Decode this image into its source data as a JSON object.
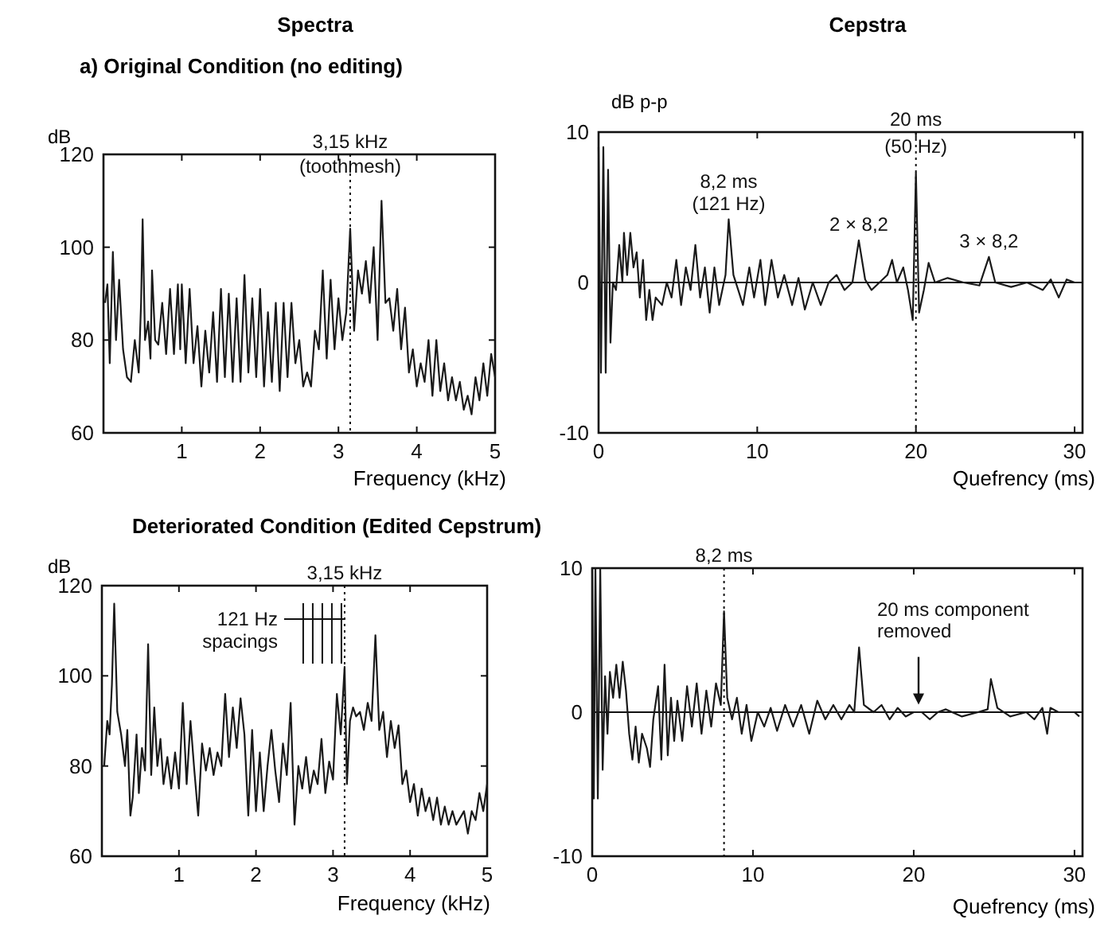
{
  "chart_data": [
    {
      "type": "line",
      "title": "Spectra",
      "subtitle": "a) Original Condition (no editing)",
      "xlabel": "Frequency (kHz)",
      "ylabel": "dB",
      "xlim": [
        0,
        5
      ],
      "ylim": [
        60,
        120
      ],
      "xticks": [
        1,
        2,
        3,
        4,
        5
      ],
      "yticks": [
        60,
        80,
        100,
        120
      ],
      "x": [
        0.02,
        0.05,
        0.08,
        0.12,
        0.16,
        0.2,
        0.25,
        0.3,
        0.35,
        0.4,
        0.45,
        0.48,
        0.5,
        0.53,
        0.57,
        0.6,
        0.62,
        0.66,
        0.7,
        0.75,
        0.8,
        0.85,
        0.9,
        0.95,
        0.98,
        1.0,
        1.05,
        1.1,
        1.15,
        1.2,
        1.25,
        1.3,
        1.35,
        1.4,
        1.45,
        1.5,
        1.55,
        1.6,
        1.65,
        1.7,
        1.75,
        1.8,
        1.85,
        1.9,
        1.95,
        2.0,
        2.05,
        2.1,
        2.15,
        2.2,
        2.25,
        2.3,
        2.35,
        2.4,
        2.45,
        2.5,
        2.55,
        2.6,
        2.65,
        2.7,
        2.75,
        2.8,
        2.85,
        2.9,
        2.95,
        3.0,
        3.05,
        3.1,
        3.15,
        3.2,
        3.25,
        3.3,
        3.35,
        3.4,
        3.45,
        3.5,
        3.55,
        3.6,
        3.65,
        3.7,
        3.75,
        3.8,
        3.85,
        3.9,
        3.95,
        4.0,
        4.05,
        4.1,
        4.15,
        4.2,
        4.25,
        4.3,
        4.35,
        4.4,
        4.45,
        4.5,
        4.55,
        4.6,
        4.65,
        4.7,
        4.75,
        4.8,
        4.85,
        4.9,
        4.95,
        5.0
      ],
      "series": [
        {
          "color": "#1a1a1a",
          "values": [
            88,
            92,
            75,
            99,
            80,
            93,
            78,
            72,
            71,
            80,
            73,
            88,
            106,
            80,
            84,
            76,
            95,
            80,
            79,
            88,
            77,
            91,
            77,
            92,
            78,
            92,
            75,
            91,
            75,
            83,
            70,
            82,
            73,
            86,
            71,
            91,
            72,
            90,
            71,
            89,
            71,
            94,
            73,
            89,
            72,
            91,
            70,
            86,
            71,
            88,
            69,
            88,
            72,
            88,
            75,
            80,
            70,
            73,
            70,
            82,
            78,
            95,
            76,
            93,
            78,
            89,
            80,
            86,
            104,
            82,
            95,
            90,
            97,
            88,
            100,
            80,
            110,
            88,
            89,
            82,
            91,
            78,
            87,
            73,
            78,
            70,
            75,
            71,
            80,
            68,
            80,
            69,
            75,
            67,
            72,
            67,
            71,
            65,
            68,
            64,
            72,
            67,
            75,
            68,
            77,
            72
          ]
        }
      ],
      "ref_lines": [
        {
          "axis": "x",
          "value": 3.15,
          "label": "3,15 kHz",
          "line_style": "dotted"
        }
      ],
      "annotations": [
        {
          "text": "(toothmesh)",
          "x": 3.15,
          "y": 114
        }
      ]
    },
    {
      "type": "line",
      "title": "Cepstra",
      "xlabel": "Quefrency (ms)",
      "ylabel": "dB p-p",
      "xlim": [
        0,
        30.5
      ],
      "ylim": [
        -10,
        10
      ],
      "xticks": [
        0,
        10,
        20,
        30
      ],
      "yticks": [
        -10,
        0,
        10
      ],
      "x": [
        0,
        0.15,
        0.3,
        0.45,
        0.6,
        0.75,
        0.9,
        1.1,
        1.3,
        1.5,
        1.6,
        1.8,
        2.0,
        2.2,
        2.4,
        2.6,
        2.8,
        3.0,
        3.2,
        3.4,
        3.6,
        4.0,
        4.3,
        4.6,
        4.9,
        5.2,
        5.5,
        5.8,
        6.1,
        6.4,
        6.7,
        7.0,
        7.3,
        7.6,
        8.0,
        8.2,
        8.5,
        8.8,
        9.1,
        9.5,
        9.8,
        10.2,
        10.5,
        10.9,
        11.3,
        11.7,
        12.2,
        12.6,
        13.0,
        13.5,
        14,
        14.5,
        15,
        15.5,
        16.0,
        16.4,
        16.8,
        17.2,
        17.7,
        18.2,
        18.5,
        18.8,
        19.2,
        19.5,
        19.8,
        20.0,
        20.2,
        20.5,
        20.8,
        21.2,
        22,
        23,
        24,
        24.6,
        25,
        26,
        27,
        28,
        28.5,
        29,
        29.5,
        30
      ],
      "series": [
        {
          "color": "#1a1a1a",
          "values": [
            9,
            -6,
            9,
            -6,
            7.5,
            -4,
            0,
            -0.5,
            2.5,
            0,
            3.3,
            0.5,
            3.3,
            1,
            2,
            -1,
            1.5,
            -2.5,
            -0.5,
            -2.5,
            -1,
            -1.5,
            0,
            -1,
            1.5,
            -1.5,
            1,
            -0.5,
            2.5,
            -1,
            1,
            -2,
            1,
            -1.5,
            0.5,
            4.2,
            0.5,
            -0.5,
            -1.5,
            1,
            -1,
            1.5,
            -1.5,
            1.5,
            -1,
            0.5,
            -1.5,
            0.3,
            -1.8,
            0,
            -1.5,
            0,
            0.5,
            -0.5,
            0,
            2.8,
            0.2,
            -0.5,
            0,
            0.5,
            1.5,
            0,
            1,
            -0.5,
            -2.5,
            7.3,
            -2,
            -0.5,
            1.3,
            0,
            0.3,
            0,
            -0.2,
            1.7,
            0,
            -0.3,
            0,
            -0.5,
            0.2,
            -1,
            0.2,
            0
          ]
        }
      ],
      "ref_lines": [
        {
          "axis": "x",
          "value": 20,
          "label": "20 ms",
          "line_style": "dotted"
        },
        {
          "axis": "y",
          "value": 0,
          "line_style": "solid"
        }
      ],
      "annotations": [
        {
          "text": "(50 Hz)",
          "x": 20,
          "y": 8
        },
        {
          "text": "8,2 ms\n(121 Hz)",
          "x": 8.2,
          "y": 4.2
        },
        {
          "text": "2 × 8,2",
          "x": 16.4,
          "y": 2.8
        },
        {
          "text": "3 × 8,2",
          "x": 24.6,
          "y": 1.7
        }
      ]
    },
    {
      "type": "line",
      "title": "Deteriorated Condition (Edited Cepstrum)",
      "xlabel": "Frequency (kHz)",
      "ylabel": "dB",
      "xlim": [
        0,
        5
      ],
      "ylim": [
        60,
        120
      ],
      "xticks": [
        1,
        2,
        3,
        4,
        5
      ],
      "yticks": [
        60,
        80,
        100,
        120
      ],
      "x": [
        0.03,
        0.07,
        0.1,
        0.13,
        0.16,
        0.2,
        0.25,
        0.3,
        0.33,
        0.37,
        0.4,
        0.45,
        0.48,
        0.52,
        0.56,
        0.6,
        0.64,
        0.68,
        0.72,
        0.76,
        0.8,
        0.85,
        0.9,
        0.95,
        1.0,
        1.05,
        1.1,
        1.15,
        1.2,
        1.25,
        1.3,
        1.35,
        1.4,
        1.45,
        1.5,
        1.55,
        1.6,
        1.65,
        1.7,
        1.75,
        1.8,
        1.85,
        1.9,
        1.95,
        2.0,
        2.05,
        2.1,
        2.15,
        2.2,
        2.25,
        2.3,
        2.35,
        2.4,
        2.45,
        2.5,
        2.55,
        2.6,
        2.65,
        2.7,
        2.75,
        2.8,
        2.85,
        2.9,
        2.95,
        3.0,
        3.05,
        3.1,
        3.15,
        3.18,
        3.22,
        3.26,
        3.3,
        3.35,
        3.4,
        3.45,
        3.5,
        3.55,
        3.6,
        3.65,
        3.7,
        3.75,
        3.8,
        3.85,
        3.9,
        3.95,
        4.0,
        4.05,
        4.1,
        4.15,
        4.2,
        4.25,
        4.3,
        4.35,
        4.4,
        4.45,
        4.5,
        4.55,
        4.6,
        4.7,
        4.75,
        4.8,
        4.85,
        4.9,
        4.95,
        5.0
      ],
      "series": [
        {
          "color": "#1a1a1a",
          "values": [
            80,
            90,
            87,
            98,
            116,
            92,
            87,
            80,
            88,
            69,
            73,
            87,
            74,
            84,
            79,
            107,
            78,
            93,
            80,
            86,
            76,
            82,
            75,
            83,
            75,
            94,
            76,
            90,
            79,
            69,
            85,
            79,
            84,
            78,
            83,
            80,
            96,
            82,
            93,
            84,
            95,
            87,
            69,
            88,
            70,
            83,
            70,
            80,
            88,
            79,
            72,
            85,
            78,
            94,
            67,
            80,
            75,
            82,
            74,
            79,
            76,
            86,
            74,
            81,
            77,
            96,
            87,
            102,
            76,
            90,
            93,
            91,
            92,
            88,
            94,
            90,
            109,
            88,
            92,
            82,
            90,
            84,
            89,
            76,
            79,
            72,
            76,
            69,
            75,
            70,
            73,
            68,
            73,
            67,
            71,
            67,
            70,
            67,
            70,
            65,
            70,
            68,
            74,
            70,
            76
          ]
        }
      ],
      "ref_lines": [
        {
          "axis": "x",
          "value": 3.15,
          "label": "3,15 kHz",
          "line_style": "dotted"
        }
      ],
      "annotations": [
        "121 Hz\nspacings"
      ]
    },
    {
      "type": "line",
      "xlabel": "Quefrency (ms)",
      "xlim": [
        0,
        30.5
      ],
      "ylim": [
        -10,
        10
      ],
      "xticks": [
        0,
        10,
        20,
        30
      ],
      "yticks": [
        -10,
        0,
        10
      ],
      "x": [
        0,
        0.1,
        0.2,
        0.35,
        0.5,
        0.65,
        0.8,
        0.95,
        1.1,
        1.3,
        1.5,
        1.7,
        1.9,
        2.1,
        2.3,
        2.5,
        2.7,
        2.9,
        3.1,
        3.4,
        3.6,
        3.8,
        4.1,
        4.3,
        4.5,
        4.7,
        4.9,
        5.1,
        5.3,
        5.6,
        5.9,
        6.2,
        6.5,
        6.8,
        7.1,
        7.4,
        7.7,
        8.0,
        8.2,
        8.4,
        8.7,
        9.0,
        9.3,
        9.6,
        9.9,
        10.3,
        10.7,
        11.1,
        11.5,
        12.0,
        12.5,
        13,
        13.5,
        14,
        14.5,
        15,
        15.5,
        16,
        16.3,
        16.6,
        16.9,
        17.5,
        18,
        18.5,
        19,
        19.5,
        20,
        20.5,
        21,
        21.5,
        22,
        23,
        24,
        24.6,
        24.8,
        25.2,
        26,
        27,
        27.5,
        28,
        28.3,
        28.5,
        29,
        30,
        30.3
      ],
      "series": [
        {
          "color": "#1a1a1a",
          "values": [
            10,
            -6,
            10,
            -6,
            10,
            -4,
            2.5,
            -1.5,
            2.8,
            1,
            3.3,
            1,
            3.5,
            1.5,
            -1.5,
            -3.3,
            -1,
            -3.5,
            -1.5,
            -2.5,
            -3.8,
            -0.5,
            1.8,
            -3.3,
            3.3,
            -3,
            1,
            -2,
            0.8,
            -2,
            1.8,
            -1,
            2,
            -1.5,
            1.5,
            -1,
            2,
            0.5,
            7,
            1,
            -0.5,
            1,
            -1.5,
            0.5,
            -2,
            0,
            -1,
            0.3,
            -1.3,
            0.5,
            -1,
            0.5,
            -1.5,
            0.8,
            -0.5,
            0.5,
            -0.5,
            0.5,
            0,
            4.5,
            0.5,
            0,
            0.5,
            -0.5,
            0.3,
            -0.3,
            0,
            0,
            -0.5,
            0,
            0.2,
            -0.3,
            0,
            0.2,
            2.3,
            0.3,
            -0.3,
            0,
            -0.5,
            0.3,
            -1.5,
            0.3,
            0,
            0,
            -0.3
          ]
        }
      ],
      "ref_lines": [
        {
          "axis": "x",
          "value": 8.2,
          "label": "8,2 ms",
          "line_style": "dotted"
        },
        {
          "axis": "y",
          "value": 0,
          "line_style": "solid"
        }
      ],
      "annotations": [
        {
          "text": "20 ms component\nremoved",
          "x": 20.3,
          "y": 0.3
        }
      ]
    }
  ]
}
